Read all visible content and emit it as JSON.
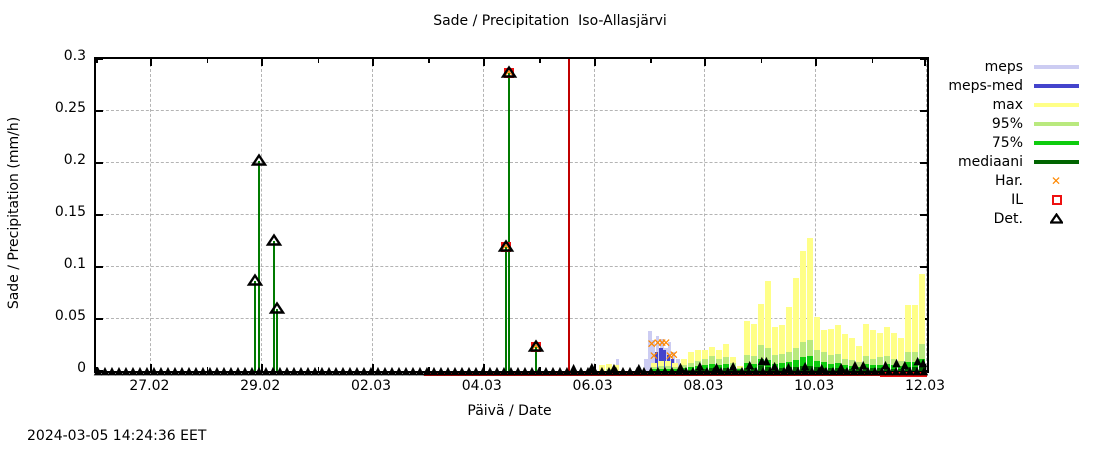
{
  "chart": {
    "title": "Sade / Precipitation  Iso-Allasjärvi",
    "ylabel": "Sade / Precipitation (mm/h)",
    "xlabel": "Päivä / Date",
    "timestamp": "2024-03-05 14:24:36 EET"
  },
  "chart_data": {
    "type": "mixed",
    "description": "Precipitation forecast/observation time series: ensemble bars (meps), forecast percentile bars (max/95%/75%/mediaani), observation impulses with markers (Har., IL, Det.), red vertical current-time line",
    "title": "Sade / Precipitation  Iso-Allasjärvi",
    "xlabel": "Päivä / Date",
    "ylabel": "Sade / Precipitation (mm/h)",
    "ylim": [
      0,
      0.3
    ],
    "x_axis_days_total": 15,
    "grid": "dashed gray at labeled ticks",
    "legend_position": "outside right",
    "yticks": [
      {
        "label": "0",
        "v": 0
      },
      {
        "label": "0.05",
        "v": 0.05
      },
      {
        "label": "0.1",
        "v": 0.1
      },
      {
        "label": "0.15",
        "v": 0.15
      },
      {
        "label": "0.2",
        "v": 0.2
      },
      {
        "label": "0.25",
        "v": 0.25
      },
      {
        "label": "0.3",
        "v": 0.3
      }
    ],
    "xticks": [
      {
        "label": "27.02",
        "t": 1
      },
      {
        "label": "29.02",
        "t": 3
      },
      {
        "label": "02.03",
        "t": 5
      },
      {
        "label": "04.03",
        "t": 7
      },
      {
        "label": "06.03",
        "t": 9
      },
      {
        "label": "08.03",
        "t": 11
      },
      {
        "label": "10.03",
        "t": 13
      },
      {
        "label": "12.03",
        "t": 15
      }
    ],
    "xticks_minor": [
      0,
      2,
      4,
      6,
      8,
      10,
      12,
      14
    ],
    "colors": {
      "meps": "#ccccf2",
      "meps_med": "#4444cc",
      "max": "#ffff87",
      "p95": "#b9e97e",
      "p75": "#0ecc0e",
      "mediaani": "#006400",
      "spike": "#007a00",
      "har": "#ff8800",
      "il": "#ee1111",
      "det": "#000000",
      "now_line": "#c00000",
      "grid": "#b4b4b4"
    },
    "legend": [
      {
        "label": "meps",
        "swatch": "line",
        "color": "#ccccf2"
      },
      {
        "label": "meps-med",
        "swatch": "line",
        "color": "#4444cc"
      },
      {
        "label": "max",
        "swatch": "line",
        "color": "#ffff87"
      },
      {
        "label": "95%",
        "swatch": "line",
        "color": "#b9e97e"
      },
      {
        "label": "75%",
        "swatch": "line",
        "color": "#0ecc0e"
      },
      {
        "label": "mediaani",
        "swatch": "line",
        "color": "#006400"
      },
      {
        "label": "Har.",
        "swatch": "x",
        "color": "#ff8800"
      },
      {
        "label": "IL",
        "swatch": "square",
        "color": "#ee1111"
      },
      {
        "label": "Det.",
        "swatch": "triangle",
        "color": "#000000"
      }
    ],
    "now_line": {
      "t": 8.53,
      "note": "current time 2024-03-05 ~13h"
    },
    "observation_spikes": [
      {
        "t": 2.87,
        "v": 0.087,
        "markers": [
          "det"
        ]
      },
      {
        "t": 2.94,
        "v": 0.202,
        "markers": [
          "det"
        ]
      },
      {
        "t": 3.21,
        "v": 0.125,
        "markers": [
          "det"
        ]
      },
      {
        "t": 3.27,
        "v": 0.06,
        "markers": [
          "det"
        ]
      },
      {
        "t": 7.4,
        "v": 0.119,
        "markers": [
          "har",
          "il",
          "det"
        ]
      },
      {
        "t": 7.45,
        "v": 0.287,
        "markers": [
          "har",
          "il",
          "det"
        ]
      },
      {
        "t": 7.94,
        "v": 0.023,
        "markers": [
          "har",
          "il",
          "det"
        ]
      }
    ],
    "meps_bars": [
      [
        9.42,
        0.012
      ],
      [
        9.93,
        0.012
      ],
      [
        10.0,
        0.038
      ],
      [
        10.07,
        0.03
      ],
      [
        10.14,
        0.034
      ],
      [
        10.22,
        0.031
      ],
      [
        10.29,
        0.022
      ],
      [
        10.36,
        0.028
      ],
      [
        10.43,
        0.018
      ],
      [
        10.51,
        0.012
      ],
      [
        10.58,
        0.008
      ],
      [
        11.15,
        0.013
      ]
    ],
    "meps_med_bars": [
      [
        10.12,
        0.018
      ],
      [
        10.2,
        0.022
      ],
      [
        10.27,
        0.02
      ],
      [
        10.34,
        0.015
      ],
      [
        10.41,
        0.012
      ]
    ],
    "har_markers": [
      [
        10.03,
        0.025
      ],
      [
        10.14,
        0.026
      ],
      [
        10.22,
        0.026
      ],
      [
        10.29,
        0.026
      ],
      [
        10.07,
        0.013
      ],
      [
        10.36,
        0.013
      ],
      [
        10.43,
        0.014
      ]
    ],
    "forecast_bars_fields": [
      "t",
      "max",
      "p95",
      "p75",
      "med"
    ],
    "forecast_bars": [
      [
        9.13,
        0.006,
        0,
        0,
        0
      ],
      [
        9.26,
        0.007,
        0.002,
        0,
        0
      ],
      [
        9.39,
        0.006,
        0,
        0,
        0
      ],
      [
        10.07,
        0.008,
        0.004,
        0.002,
        0
      ],
      [
        10.2,
        0.01,
        0.005,
        0.002,
        0
      ],
      [
        10.32,
        0.01,
        0.005,
        0.002,
        0
      ],
      [
        10.45,
        0.008,
        0.004,
        0.002,
        0
      ],
      [
        10.61,
        0.012,
        0.006,
        0.003,
        0.001
      ],
      [
        10.74,
        0.018,
        0.008,
        0.004,
        0.001
      ],
      [
        10.87,
        0.02,
        0.01,
        0.005,
        0.002
      ],
      [
        11.0,
        0.02,
        0.012,
        0.006,
        0.002
      ],
      [
        11.12,
        0.023,
        0.014,
        0.007,
        0.003
      ],
      [
        11.25,
        0.02,
        0.012,
        0.006,
        0.002
      ],
      [
        11.37,
        0.026,
        0.013,
        0.007,
        0.003
      ],
      [
        11.5,
        0.013,
        0.008,
        0.004,
        0.002
      ],
      [
        11.62,
        0.005,
        0.003,
        0.002,
        0.001
      ],
      [
        11.75,
        0.048,
        0.015,
        0.008,
        0.003
      ],
      [
        11.88,
        0.045,
        0.014,
        0.007,
        0.003
      ],
      [
        12.0,
        0.064,
        0.025,
        0.012,
        0.005
      ],
      [
        12.13,
        0.087,
        0.022,
        0.011,
        0.004
      ],
      [
        12.26,
        0.042,
        0.015,
        0.007,
        0.003
      ],
      [
        12.38,
        0.044,
        0.016,
        0.008,
        0.003
      ],
      [
        12.51,
        0.062,
        0.018,
        0.009,
        0.004
      ],
      [
        12.63,
        0.089,
        0.022,
        0.011,
        0.004
      ],
      [
        12.76,
        0.115,
        0.028,
        0.013,
        0.005
      ],
      [
        12.89,
        0.128,
        0.03,
        0.014,
        0.005
      ],
      [
        13.01,
        0.052,
        0.02,
        0.01,
        0.004
      ],
      [
        13.14,
        0.039,
        0.018,
        0.009,
        0.003
      ],
      [
        13.27,
        0.04,
        0.015,
        0.007,
        0.003
      ],
      [
        13.39,
        0.044,
        0.016,
        0.008,
        0.003
      ],
      [
        13.52,
        0.036,
        0.012,
        0.006,
        0.002
      ],
      [
        13.64,
        0.032,
        0.011,
        0.005,
        0.002
      ],
      [
        13.77,
        0.024,
        0.009,
        0.004,
        0.002
      ],
      [
        13.9,
        0.045,
        0.014,
        0.007,
        0.003
      ],
      [
        14.02,
        0.039,
        0.012,
        0.006,
        0.003
      ],
      [
        14.15,
        0.037,
        0.013,
        0.006,
        0.003
      ],
      [
        14.28,
        0.042,
        0.014,
        0.007,
        0.003
      ],
      [
        14.4,
        0.037,
        0.012,
        0.006,
        0.002
      ],
      [
        14.53,
        0.032,
        0.01,
        0.005,
        0.002
      ],
      [
        14.65,
        0.063,
        0.018,
        0.009,
        0.004
      ],
      [
        14.78,
        0.063,
        0.018,
        0.009,
        0.004
      ],
      [
        14.91,
        0.093,
        0.026,
        0.012,
        0.005
      ]
    ],
    "det_baseline": {
      "from": 0,
      "to": 15,
      "value": 0
    },
    "det_bumps": [
      [
        8.62,
        0.004
      ],
      [
        8.95,
        0.005
      ],
      [
        9.35,
        0.004
      ],
      [
        9.8,
        0.004
      ],
      [
        10.55,
        0.005
      ],
      [
        10.9,
        0.006
      ],
      [
        11.2,
        0.005
      ],
      [
        11.5,
        0.006
      ],
      [
        11.8,
        0.007
      ],
      [
        12.02,
        0.011
      ],
      [
        12.1,
        0.011
      ],
      [
        12.25,
        0.006
      ],
      [
        12.5,
        0.005
      ],
      [
        12.8,
        0.006
      ],
      [
        13.1,
        0.004
      ],
      [
        13.45,
        0.005
      ],
      [
        13.7,
        0.007
      ],
      [
        13.85,
        0.007
      ],
      [
        14.25,
        0.007
      ],
      [
        14.45,
        0.009
      ],
      [
        14.6,
        0.007
      ],
      [
        14.83,
        0.011
      ],
      [
        14.93,
        0.009
      ]
    ],
    "il_baseline": {
      "from": 5.92,
      "to": 15,
      "value": 0
    },
    "il_baseline_thick": {
      "from": 14.15,
      "to": 15
    }
  }
}
